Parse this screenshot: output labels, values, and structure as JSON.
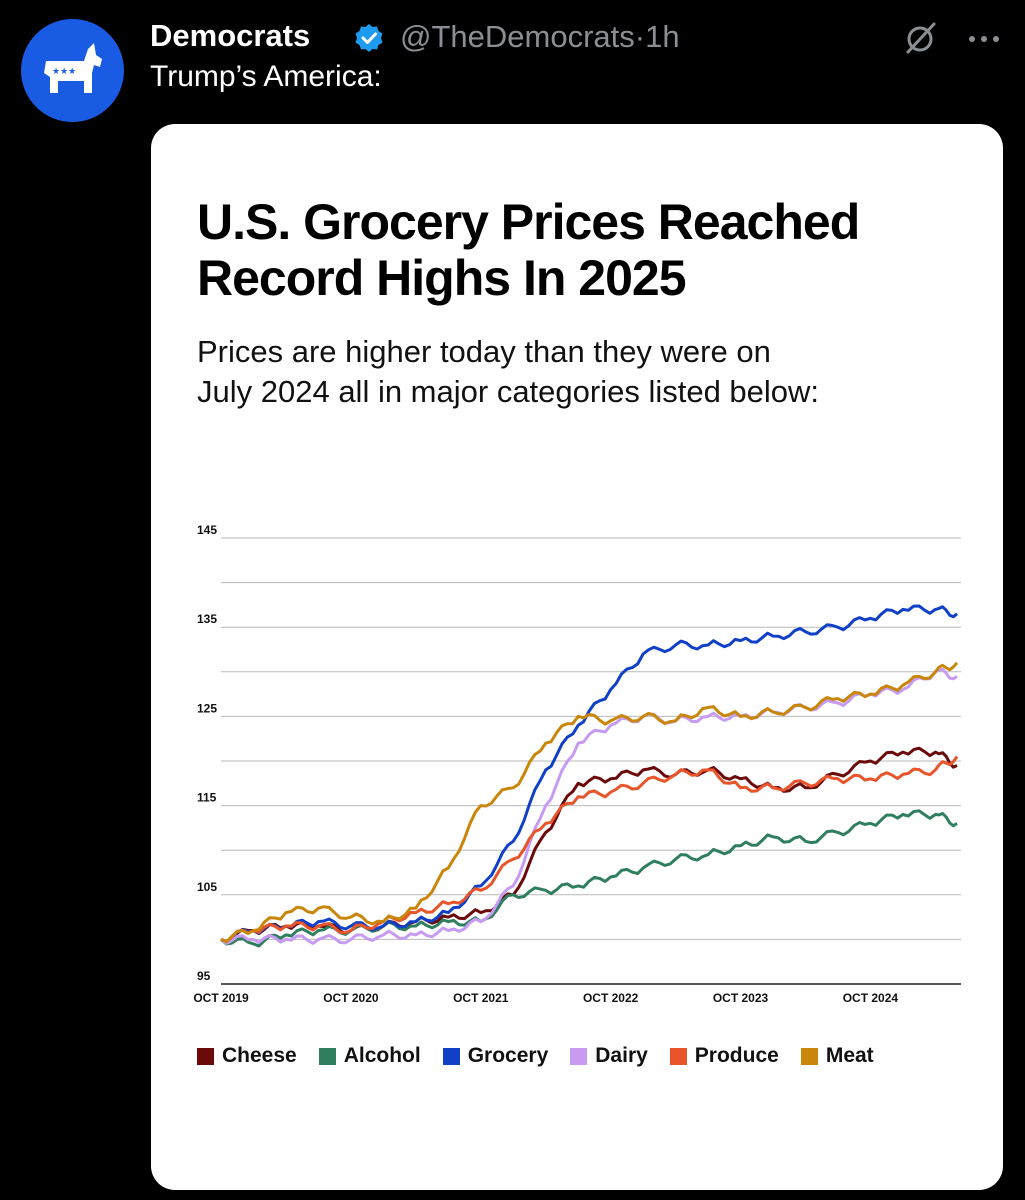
{
  "post": {
    "author_name": "Democrats",
    "handle": "@TheDemocrats",
    "separator": "·",
    "time": "1h",
    "text": "Trump’s America:",
    "verified_icon": "verified-badge-icon",
    "action_icons": [
      "grok-icon",
      "more-options-icon"
    ]
  },
  "card": {
    "title_line1": "U.S. Grocery Prices Reached",
    "title_line2": "Record Highs In 2025",
    "subtitle_line1": "Prices are higher today than they were on",
    "subtitle_line2": "July 2024 all in major categories listed below:"
  },
  "colors": {
    "avatar_bg": "#1a5be3",
    "verified": "#1d9bf0",
    "Cheese": "#6b0a0a",
    "Alcohol": "#2f7f5f",
    "Grocery": "#1040c8",
    "Dairy": "#c79bf2",
    "Produce": "#e8552a",
    "Meat": "#c8860a"
  },
  "chart_data": {
    "type": "line",
    "ylim": [
      95,
      145
    ],
    "y_ticks": [
      95,
      105,
      115,
      125,
      135,
      145
    ],
    "x_tick_labels": [
      "OCT 2019",
      "OCT 2020",
      "OCT 2021",
      "OCT 2022",
      "OCT 2023",
      "OCT 2024"
    ],
    "xlim": [
      "2019-10",
      "2025-06"
    ],
    "grid": true,
    "legend_position": "bottom",
    "x": [
      "2019-10",
      "2020-01",
      "2020-04",
      "2020-07",
      "2020-10",
      "2021-01",
      "2021-04",
      "2021-07",
      "2021-10",
      "2022-01",
      "2022-04",
      "2022-07",
      "2022-10",
      "2023-01",
      "2023-04",
      "2023-07",
      "2023-10",
      "2024-01",
      "2024-04",
      "2024-07",
      "2024-10",
      "2025-01",
      "2025-04",
      "2025-06"
    ],
    "series": [
      {
        "name": "Cheese",
        "values": [
          100,
          101,
          101.5,
          101.5,
          101,
          101.5,
          102,
          102.5,
          103,
          105,
          112,
          117.5,
          118,
          119,
          118.5,
          119,
          118,
          117,
          117,
          118.5,
          120,
          121,
          121,
          119.5
        ]
      },
      {
        "name": "Alcohol",
        "values": [
          100,
          99.5,
          100.5,
          101,
          101,
          101.5,
          101.5,
          102,
          102,
          105,
          105.5,
          106,
          107,
          108,
          109,
          109.5,
          110.5,
          111.5,
          111,
          112,
          113,
          114,
          114,
          113
        ]
      },
      {
        "name": "Grocery",
        "values": [
          100,
          101,
          101.5,
          102,
          101.5,
          101.5,
          102,
          103,
          106,
          111,
          119,
          124,
          128,
          132,
          133,
          133,
          133.5,
          134,
          134.5,
          135,
          136,
          137,
          137,
          136.5
        ]
      },
      {
        "name": "Dairy",
        "values": [
          100,
          100,
          100,
          100,
          100,
          100.5,
          100.5,
          101,
          102,
          106,
          115,
          122,
          124,
          125,
          124.5,
          125,
          125,
          125.5,
          126,
          126.5,
          127.5,
          128,
          130,
          129.5
        ]
      },
      {
        "name": "Produce",
        "values": [
          100,
          101,
          101.5,
          101.5,
          101,
          102,
          103,
          104,
          105.5,
          109,
          113,
          116,
          116.5,
          117.5,
          118.5,
          119,
          117,
          117,
          117.5,
          118,
          118,
          118.5,
          119,
          120.5
        ]
      },
      {
        "name": "Meat",
        "values": [
          100,
          101,
          103,
          103.5,
          102.5,
          102,
          103.5,
          108,
          115,
          117,
          122,
          125,
          124.5,
          125,
          124.5,
          126,
          125,
          125.5,
          126,
          127,
          127.5,
          128.5,
          130,
          131
        ]
      }
    ]
  }
}
